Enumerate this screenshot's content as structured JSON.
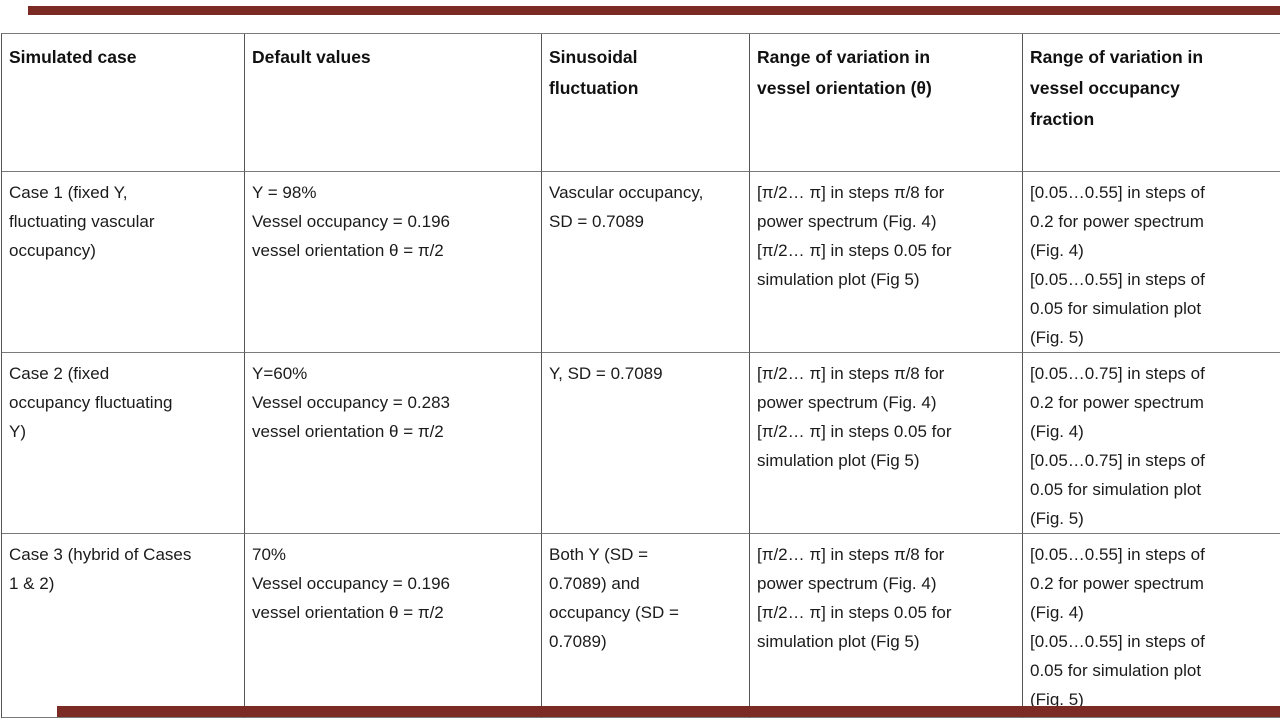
{
  "decor": {
    "accent_color": "#7c2a24"
  },
  "table": {
    "headers": [
      "Simulated case",
      "Default values",
      "Sinusoidal\nfluctuation",
      "Range of variation in\nvessel orientation (θ)",
      "Range of variation in\nvessel occupancy\nfraction"
    ],
    "rows": [
      {
        "cells": [
          "Case 1 (fixed Y,\nfluctuating vascular\noccupancy)",
          "Y = 98%\nVessel occupancy = 0.196\nvessel orientation θ = π/2",
          "Vascular occupancy,\nSD = 0.7089",
          "[π/2… π] in steps π/8 for\npower spectrum (Fig. 4)\n[π/2… π] in steps 0.05 for\nsimulation plot (Fig 5)",
          "[0.05…0.55] in steps of\n0.2 for power spectrum\n(Fig. 4)\n[0.05…0.55] in steps of\n0.05 for simulation plot\n(Fig. 5)"
        ]
      },
      {
        "cells": [
          "Case 2 (fixed\noccupancy fluctuating\nY)",
          "Y=60%\nVessel occupancy = 0.283\nvessel orientation θ = π/2",
          "Y, SD = 0.7089",
          "[π/2… π] in steps π/8 for\npower spectrum (Fig. 4)\n[π/2… π] in steps 0.05 for\nsimulation plot (Fig 5)",
          "[0.05…0.75] in steps of\n0.2 for power spectrum\n(Fig. 4)\n[0.05…0.75] in steps of\n0.05 for simulation plot\n(Fig. 5)"
        ]
      },
      {
        "cells": [
          "Case 3 (hybrid of Cases\n1 & 2)",
          "70%\nVessel occupancy = 0.196\nvessel orientation θ = π/2",
          "Both Y (SD =\n0.7089) and\noccupancy (SD =\n0.7089)",
          "[π/2… π] in steps π/8 for\npower spectrum (Fig. 4)\n[π/2… π] in steps 0.05 for\nsimulation plot (Fig 5)",
          "[0.05…0.55] in steps of\n0.2 for power spectrum\n(Fig. 4)\n[0.05…0.55] in steps of\n0.05 for simulation plot\n(Fig. 5)"
        ]
      }
    ]
  }
}
